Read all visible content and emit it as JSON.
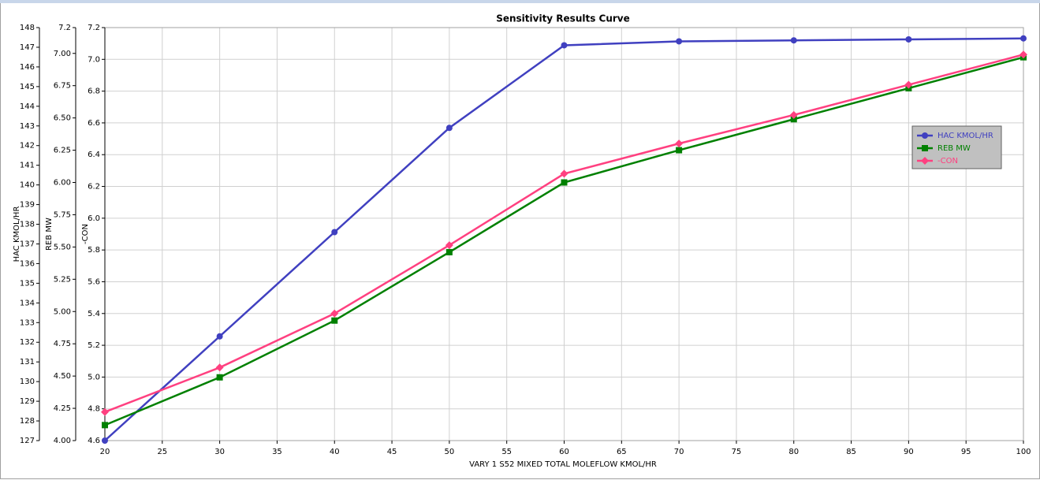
{
  "chart_data": {
    "type": "line",
    "title": "Sensitivity Results Curve",
    "xlabel": "VARY   1 S52 MIXED TOTAL MOLEFLOW KMOL/HR",
    "ylabel": "HAC KMOL/HR",
    "y2label": "REB MW",
    "y3label": "-CON",
    "x": [
      20,
      30,
      40,
      50,
      60,
      70,
      80,
      90,
      100
    ],
    "xlim": [
      20,
      100
    ],
    "xticks": [
      20,
      25,
      30,
      35,
      40,
      45,
      50,
      55,
      60,
      65,
      70,
      75,
      80,
      85,
      90,
      95,
      100
    ],
    "ylim": [
      127,
      148
    ],
    "yticks": [
      127,
      128,
      129,
      130,
      131,
      132,
      133,
      134,
      135,
      136,
      137,
      138,
      139,
      140,
      141,
      142,
      143,
      144,
      145,
      146,
      147,
      148
    ],
    "y2lim": [
      4,
      7.2
    ],
    "y2ticks": [
      {
        "value": 4,
        "label": "4.00"
      },
      {
        "value": 4.25,
        "label": "4.25"
      },
      {
        "value": 4.5,
        "label": "4.50"
      },
      {
        "value": 4.75,
        "label": "4.75"
      },
      {
        "value": 5,
        "label": "5.00"
      },
      {
        "value": 5.25,
        "label": "5.25"
      },
      {
        "value": 5.5,
        "label": "5.50"
      },
      {
        "value": 5.75,
        "label": "5.75"
      },
      {
        "value": 6,
        "label": "6.00"
      },
      {
        "value": 6.25,
        "label": "6.25"
      },
      {
        "value": 6.5,
        "label": "6.50"
      },
      {
        "value": 6.75,
        "label": "6.75"
      },
      {
        "value": 7,
        "label": "7.00"
      },
      7.2
    ],
    "y3lim": [
      4.6,
      7.2
    ],
    "y3ticks": [
      4.6,
      4.8,
      {
        "value": 5,
        "label": "5.0"
      },
      5.2,
      5.4,
      5.6,
      5.8,
      {
        "value": 6,
        "label": "6.0"
      },
      6.2,
      6.4,
      6.6,
      6.8,
      {
        "value": 7,
        "label": "7.0"
      },
      7.2
    ],
    "grid": true,
    "legend": "right",
    "series": [
      {
        "name": "HAC KMOL/HR",
        "color": "#4040c0",
        "marker": "circle",
        "axis": "y",
        "values": [
          127.0,
          132.3,
          137.6,
          142.9,
          147.1,
          147.3,
          147.35,
          147.4,
          147.45
        ]
      },
      {
        "name": "REB MW",
        "color": "#008000",
        "marker": "square",
        "axis": "y2",
        "values": [
          4.12,
          4.49,
          4.93,
          5.46,
          6.0,
          6.25,
          6.49,
          6.73,
          6.97
        ]
      },
      {
        "name": "-CON",
        "color": "#ff4080",
        "marker": "diamond",
        "axis": "y3",
        "values": [
          4.78,
          5.06,
          5.4,
          5.83,
          6.28,
          6.47,
          6.65,
          6.84,
          7.03
        ]
      }
    ]
  }
}
